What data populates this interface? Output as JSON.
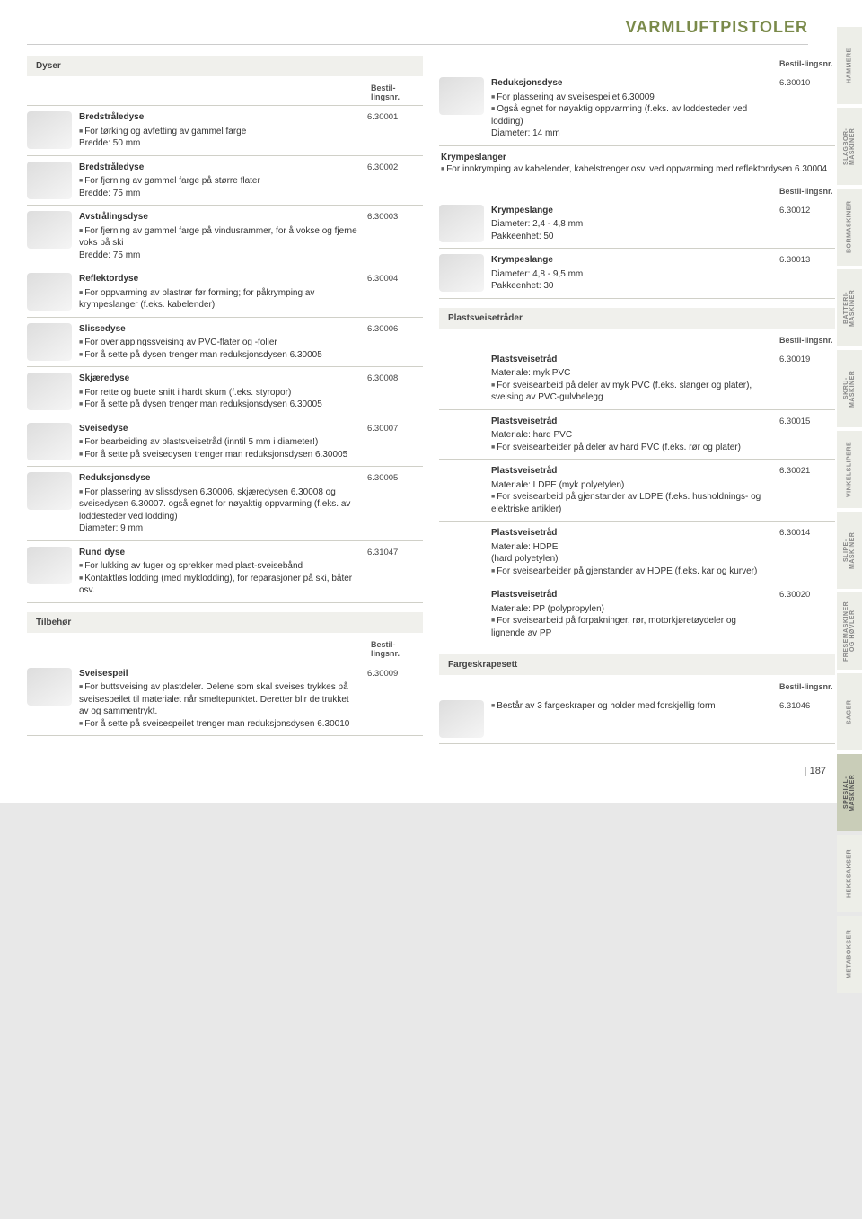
{
  "page_title": "VARMLUFTPISTOLER",
  "page_number": "187",
  "order_header": "Bestil-lingsnr.",
  "sidetabs": [
    "HAMMERE",
    "SLAGBOR-\nMASKINER",
    "BORMASKINER",
    "BATTERI-\nMASKINER",
    "SKRU-\nMASKINER",
    "VINKELSLIPERE",
    "SLIPE-\nMASKINER",
    "FRESEMASKINER\nOG HØVLER",
    "SAGER",
    "SPESIAL-\nMASKINER",
    "HEKKSAKSER",
    "METABOKSER"
  ],
  "active_tab_index": 9,
  "left": {
    "section1_title": "Dyser",
    "items": [
      {
        "name": "Bredstråledyse",
        "bullets": [
          "For tørking og avfetting av gammel farge"
        ],
        "extra": "Bredde: 50 mm",
        "code": "6.30001"
      },
      {
        "name": "Bredstråledyse",
        "bullets": [
          "For fjerning av gammel farge på større flater"
        ],
        "extra": "Bredde: 75 mm",
        "code": "6.30002"
      },
      {
        "name": "Avstrålingsdyse",
        "bullets": [
          "For fjerning av gammel farge på vindusrammer, for å vokse og fjerne voks på ski"
        ],
        "extra": "Bredde: 75 mm",
        "code": "6.30003"
      },
      {
        "name": "Reflektordyse",
        "bullets": [
          "For oppvarming av plastrør før forming; for påkrymping av krympeslanger (f.eks. kabelender)"
        ],
        "extra": "",
        "code": "6.30004"
      },
      {
        "name": "Slissedyse",
        "bullets": [
          "For overlappingssveising av PVC-flater og -folier",
          "For å sette på dysen trenger man reduksjonsdysen 6.30005"
        ],
        "extra": "",
        "code": "6.30006"
      },
      {
        "name": "Skjæredyse",
        "bullets": [
          "For rette og buete snitt i hardt skum (f.eks. styropor)",
          "For å sette på dysen trenger man reduksjonsdysen 6.30005"
        ],
        "extra": "",
        "code": "6.30008"
      },
      {
        "name": "Sveisedyse",
        "bullets": [
          "For bearbeiding av plastsveisetråd (inntil 5 mm i diameter!)",
          "For å sette på sveisedysen trenger man reduksjonsdysen 6.30005"
        ],
        "extra": "",
        "code": "6.30007"
      },
      {
        "name": "Reduksjonsdyse",
        "bullets": [
          "For plassering av slissdysen 6.30006, skjæredysen 6.30008 og sveisedysen 6.30007. også egnet for nøyaktig oppvarming (f.eks. av loddesteder ved lodding)"
        ],
        "extra": "Diameter: 9 mm",
        "code": "6.30005"
      },
      {
        "name": "Rund dyse",
        "bullets": [
          "For lukking av fuger og sprekker med plast-sveisebånd",
          "Kontaktløs lodding (med myklodding), for reparasjoner på ski, båter osv."
        ],
        "extra": "",
        "code": "6.31047"
      }
    ],
    "section2_title": "Tilbehør",
    "items2": [
      {
        "name": "Sveisespeil",
        "bullets": [
          "For buttsveising av plastdeler. Delene som skal sveises trykkes på sveisespeilet til materialet når smeltepunktet. Deretter blir de trukket av og sammentrykt.",
          "For å sette på sveisespeilet trenger man reduksjonsdysen 6.30010"
        ],
        "extra": "",
        "code": "6.30009"
      }
    ]
  },
  "right": {
    "items_top": [
      {
        "name": "Reduksjonsdyse",
        "bullets": [
          "For plassering av sveisespeilet 6.30009",
          "Også egnet for nøyaktig oppvarming (f.eks. av loddesteder ved lodding)"
        ],
        "extra": "Diameter: 14 mm",
        "code": "6.30010"
      }
    ],
    "krympe_title": "Krympeslanger",
    "krympe_intro": [
      "For innkrymping av kabelender, kabelstrenger osv. ved oppvarming med reflektordysen 6.30004"
    ],
    "krympe_items": [
      {
        "name": "Krympeslange",
        "bullets": [],
        "extra": "Diameter: 2,4 - 4,8 mm\nPakkeenhet: 50",
        "code": "6.30012"
      },
      {
        "name": "Krympeslange",
        "bullets": [],
        "extra": "Diameter: 4,8 - 9,5 mm\nPakkeenhet: 30",
        "code": "6.30013"
      }
    ],
    "plast_title": "Plastsveisetråder",
    "plast_items": [
      {
        "name": "Plastsveisetråd",
        "lines": [
          "Materiale: myk PVC"
        ],
        "bullets": [
          "For sveisearbeid på deler av myk PVC (f.eks. slanger og plater), sveising av PVC-gulvbelegg"
        ],
        "code": "6.30019"
      },
      {
        "name": "Plastsveisetråd",
        "lines": [
          "Materiale: hard PVC"
        ],
        "bullets": [
          "For sveisearbeider på deler av hard PVC (f.eks. rør og plater)"
        ],
        "code": "6.30015"
      },
      {
        "name": "Plastsveisetråd",
        "lines": [
          "Materiale: LDPE (myk polyetylen)"
        ],
        "bullets": [
          "For sveisearbeid på gjenstander av LDPE (f.eks. husholdnings- og elektriske artikler)"
        ],
        "code": "6.30021"
      },
      {
        "name": "Plastsveisetråd",
        "lines": [
          "Materiale: HDPE",
          "(hard polyetylen)"
        ],
        "bullets": [
          "For sveisearbeider på gjenstander av HDPE (f.eks. kar og kurver)"
        ],
        "code": "6.30014"
      },
      {
        "name": "Plastsveisetråd",
        "lines": [
          "Materiale: PP (polypropylen)"
        ],
        "bullets": [
          "For sveisearbeid på forpakninger, rør, motorkjøretøydeler og lignende av PP"
        ],
        "code": "6.30020"
      }
    ],
    "farge_title": "Fargeskrapesett",
    "farge_items": [
      {
        "name": "",
        "bullets": [
          "Består av 3 fargeskraper og holder med forskjellig form"
        ],
        "code": "6.31046"
      }
    ]
  }
}
